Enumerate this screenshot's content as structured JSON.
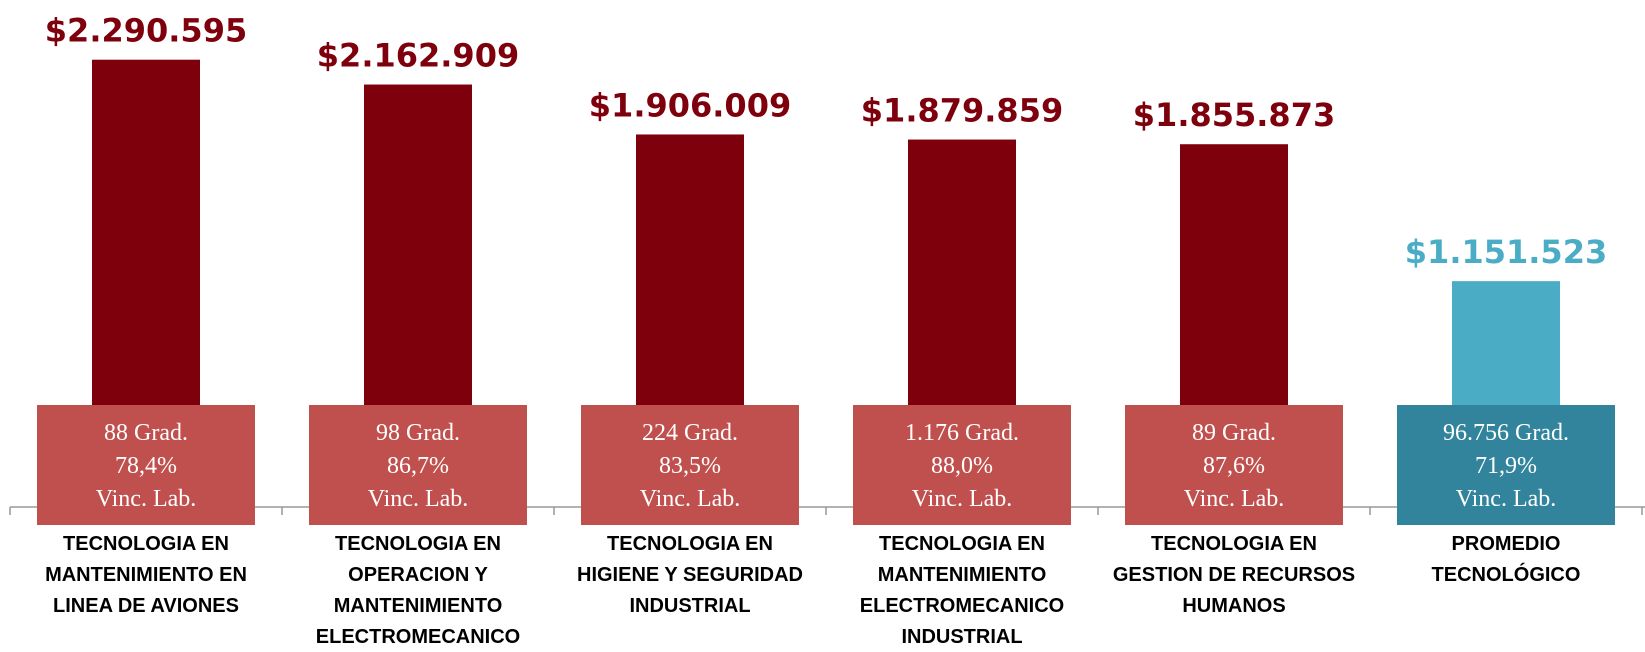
{
  "chart_data": {
    "type": "bar",
    "categories": [
      [
        "TECNOLOGIA EN",
        "MANTENIMIENTO EN",
        "LINEA DE AVIONES"
      ],
      [
        "TECNOLOGIA EN",
        "OPERACION Y",
        "MANTENIMIENTO",
        "ELECTROMECANICO"
      ],
      [
        "TECNOLOGIA EN",
        "HIGIENE Y SEGURIDAD",
        "INDUSTRIAL"
      ],
      [
        "TECNOLOGIA EN",
        "MANTENIMIENTO",
        "ELECTROMECANICO",
        "INDUSTRIAL"
      ],
      [
        "TECNOLOGIA EN",
        "GESTION DE RECURSOS",
        "HUMANOS"
      ],
      [
        "PROMEDIO",
        "TECNOLÓGICO"
      ]
    ],
    "values": [
      2290595,
      2162909,
      1906009,
      1879859,
      1855873,
      1151523
    ],
    "value_labels": [
      "$2.290.595",
      "$2.162.909",
      "$1.906.009",
      "$1.879.859",
      "$1.855.873",
      "$1.151.523"
    ],
    "colors": [
      "#7f000d",
      "#7f000d",
      "#7f000d",
      "#7f000d",
      "#7f000d",
      "#4bacc6"
    ],
    "annotations": [
      [
        "88 Grad.",
        "78,4%",
        "Vinc. Lab."
      ],
      [
        "98 Grad.",
        "86,7%",
        "Vinc. Lab."
      ],
      [
        "224 Grad.",
        "83,5%",
        "Vinc. Lab."
      ],
      [
        "1.176 Grad.",
        "88,0%",
        "Vinc. Lab."
      ],
      [
        "89  Grad.",
        "87,6%",
        "Vinc. Lab."
      ],
      [
        "96.756 Grad.",
        "71,9%",
        "Vinc. Lab."
      ]
    ],
    "annotation_colors": [
      "#c0504d",
      "#c0504d",
      "#c0504d",
      "#c0504d",
      "#c0504d",
      "#31849b"
    ],
    "ylim": [
      0,
      2500000
    ]
  }
}
